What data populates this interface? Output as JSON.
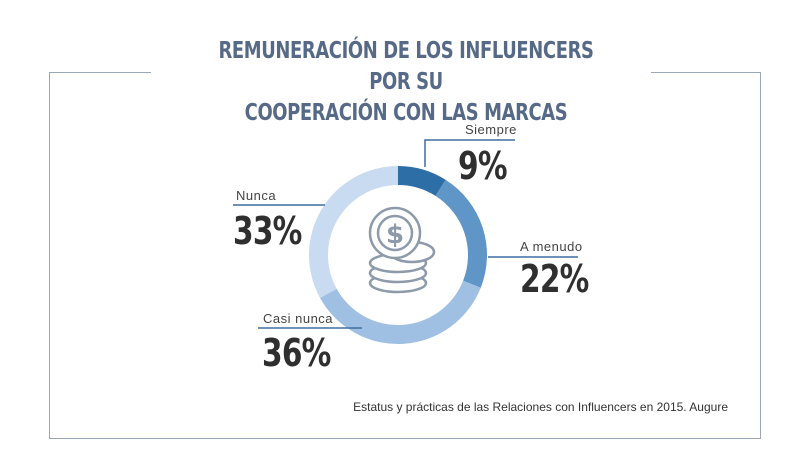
{
  "title_line1": "REMUNERACIÓN DE LOS INFLUENCERS POR SU",
  "title_line2": "COOPERACIÓN CON LAS MARCAS",
  "source": "Estatus y prácticas de las Relaciones con Influencers en 2015. Augure",
  "center_icon": "coins-dollar-icon",
  "chart_data": {
    "type": "pie",
    "donut": true,
    "title": "REMUNERACIÓN DE LOS INFLUENCERS POR SU COOPERACIÓN CON LAS MARCAS",
    "categories": [
      "Siempre",
      "A menudo",
      "Casi nunca",
      "Nunca"
    ],
    "values": [
      9,
      22,
      36,
      33
    ],
    "labels": [
      "9%",
      "22%",
      "36%",
      "33%"
    ],
    "colors": [
      "#2e6ea6",
      "#6095c7",
      "#9fc0e3",
      "#c8dbf0"
    ]
  }
}
